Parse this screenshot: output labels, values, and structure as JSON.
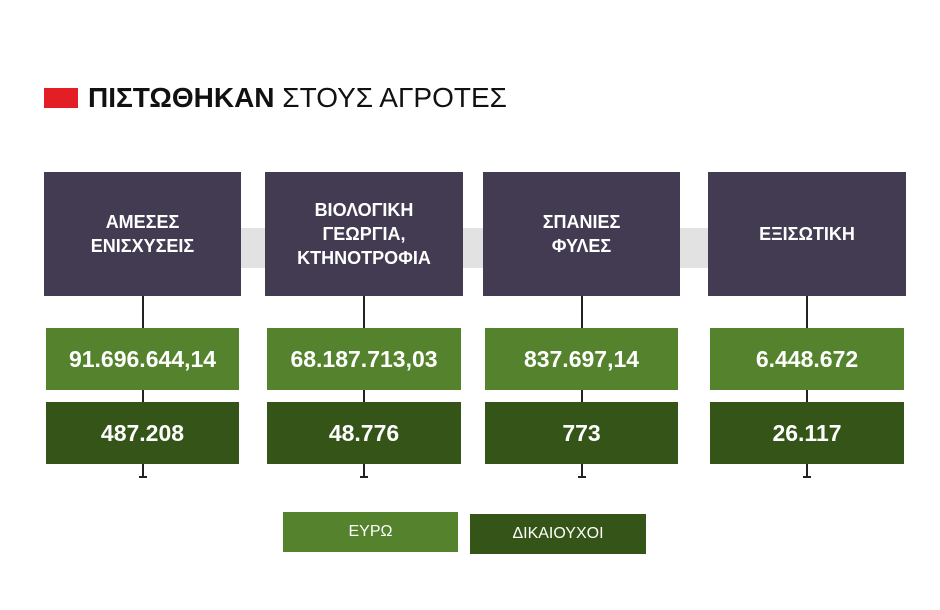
{
  "title": {
    "bold": "ΠΙΣΤΩΘΗΚΑΝ",
    "normal": "ΣΤΟΥΣ ΑΓΡΟΤΕΣ"
  },
  "columns": [
    {
      "label": [
        "ΑΜΕΣΕΣ",
        "ΕΝΙΣΧΥΣΕΙΣ"
      ],
      "euro": "91.696.644,14",
      "beneficiaries": "487.208"
    },
    {
      "label": [
        "ΒΙΟΛΟΓΙΚΗ",
        "ΓΕΩΡΓΙΑ,",
        "ΚΤΗΝΟΤΡΟΦΙΑ"
      ],
      "euro": "68.187.713,03",
      "beneficiaries": "48.776"
    },
    {
      "label": [
        "ΣΠΑΝΙΕΣ",
        "ΦΥΛΕΣ"
      ],
      "euro": "837.697,14",
      "beneficiaries": "773"
    },
    {
      "label": [
        "ΕΞΙΣΩΤΙΚΗ"
      ],
      "euro": "6.448.672",
      "beneficiaries": "26.117"
    }
  ],
  "legend": {
    "euro": "ΕΥΡΩ",
    "beneficiaries": "ΔΙΚΑΙΟΥΧΟΙ"
  }
}
